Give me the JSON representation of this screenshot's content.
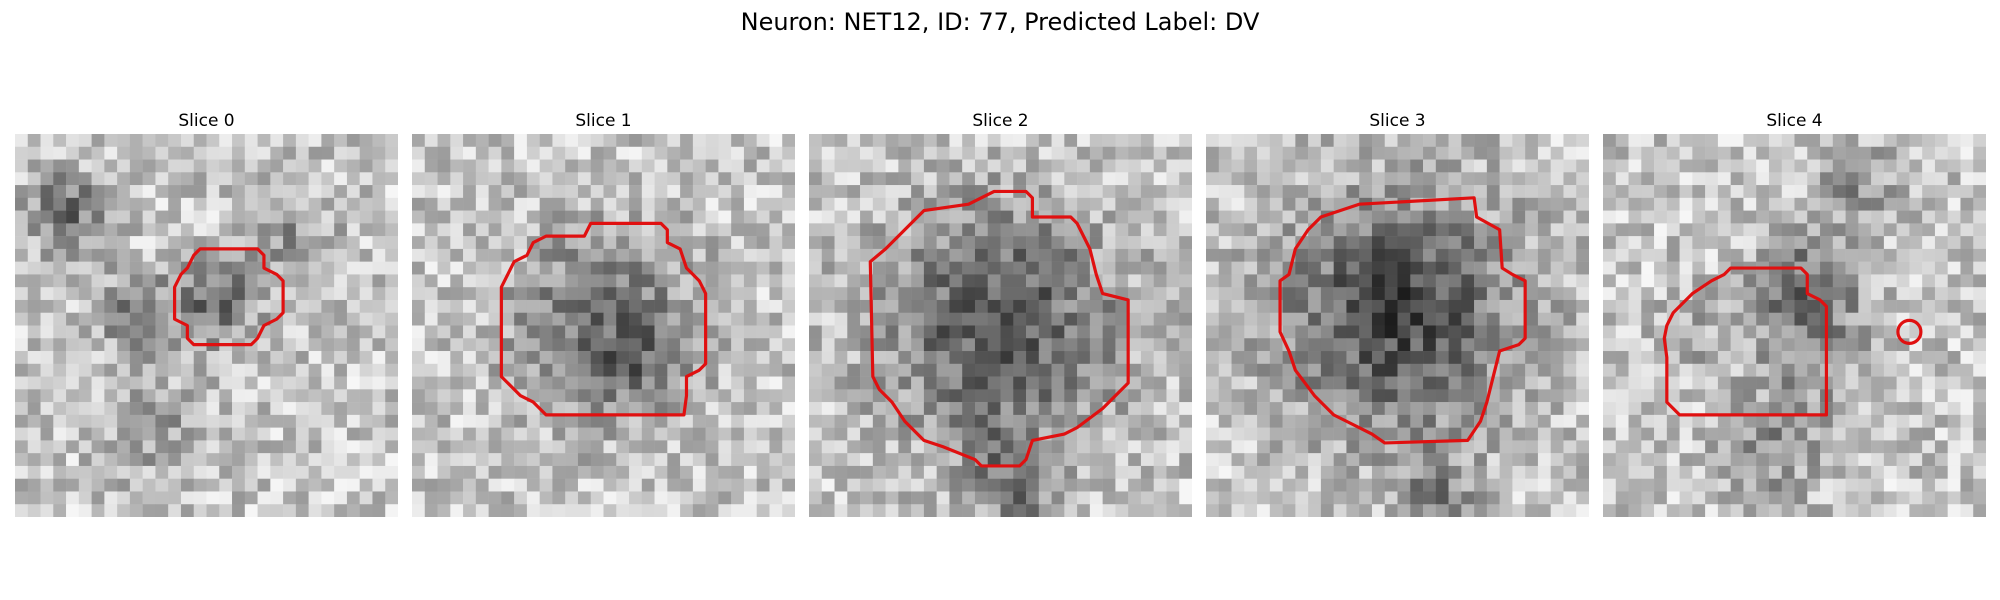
{
  "title": "Neuron: NET12, ID: 77, Predicted Label: DV",
  "outline_color": "#e01010",
  "panels": [
    {
      "label": "Slice 0"
    },
    {
      "label": "Slice 1"
    },
    {
      "label": "Slice 2"
    },
    {
      "label": "Slice 3"
    },
    {
      "label": "Slice 4"
    }
  ]
}
